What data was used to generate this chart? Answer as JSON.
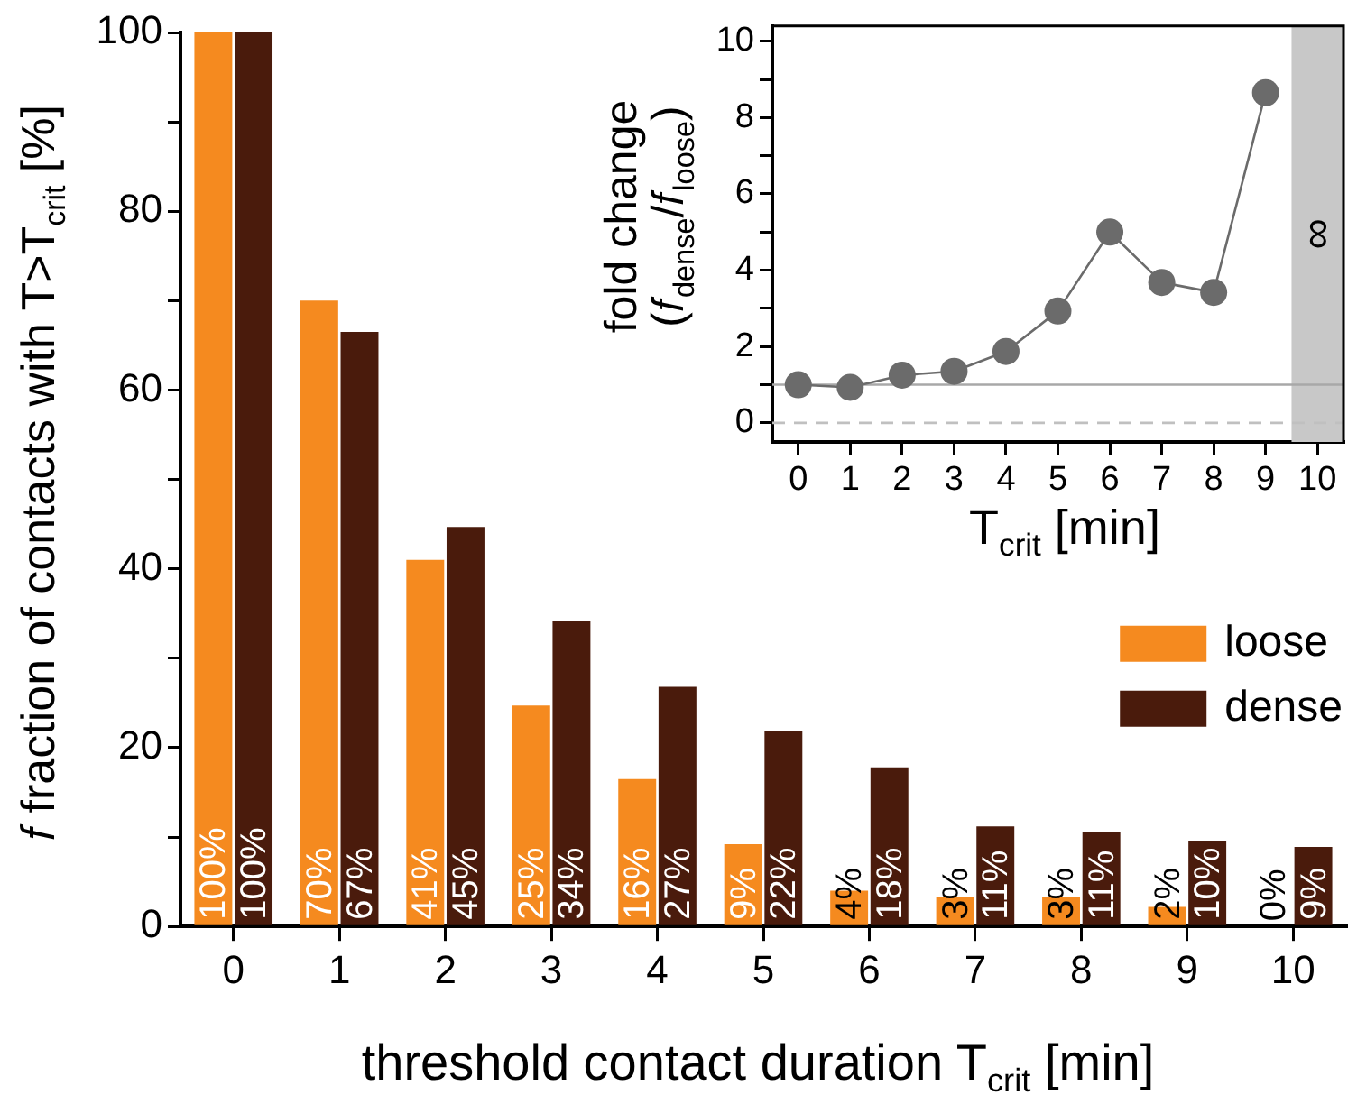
{
  "chart_data": [
    {
      "type": "bar",
      "xlabel": "threshold contact duration T$_{crit}$ [min]",
      "ylabel": "𝑓 fraction of contacts with T>T$_{crit}$ [%]",
      "categories": [
        "0",
        "1",
        "2",
        "3",
        "4",
        "5",
        "6",
        "7",
        "8",
        "9",
        "10"
      ],
      "series": [
        {
          "name": "loose",
          "color": "#f58a1f",
          "values": [
            100,
            70,
            41,
            24.7,
            16.5,
            9.2,
            4,
            3.3,
            3.3,
            2.2,
            0
          ],
          "value_labels": [
            "100%",
            "70%",
            "41%",
            "25%",
            "16%",
            "9%",
            "4%",
            "3%",
            "3%",
            "2%",
            "0%"
          ]
        },
        {
          "name": "dense",
          "color": "#4a1b0c",
          "values": [
            100,
            66.5,
            44.7,
            34.2,
            26.8,
            21.9,
            17.8,
            11.2,
            10.5,
            9.6,
            8.9
          ],
          "value_labels": [
            "100%",
            "67%",
            "45%",
            "34%",
            "27%",
            "22%",
            "18%",
            "11%",
            "11%",
            "10%",
            "9%"
          ]
        }
      ],
      "ylim": [
        0,
        100
      ],
      "yticks": [
        0,
        {
          "value": 10,
          "label": null
        },
        20,
        {
          "value": 30,
          "label": null
        },
        40,
        {
          "value": 50,
          "label": null
        },
        60,
        {
          "value": 70,
          "label": null
        },
        80,
        {
          "value": 90,
          "label": null
        },
        100
      ],
      "legend": "right"
    },
    {
      "type": "line",
      "xlabel": "T$_{crit}$ [min]",
      "ylabel": "fold change\n(𝑓$_{dense}$/𝑓$_{loose}$)",
      "x": [
        0,
        1,
        2,
        3,
        4,
        5,
        6,
        7,
        8,
        9
      ],
      "series": [
        {
          "color": "#6b6b6b",
          "values": [
            1.0,
            0.93,
            1.25,
            1.35,
            1.87,
            2.93,
            5.0,
            3.68,
            3.42,
            8.65
          ]
        }
      ],
      "xlim": [
        -0.5,
        10.5
      ],
      "xticks": [
        0,
        1,
        2,
        3,
        4,
        5,
        6,
        7,
        8,
        9,
        10
      ],
      "ylim": [
        -0.5,
        10.4
      ],
      "yticks": [
        0,
        {
          "value": 1,
          "label": null
        },
        2,
        {
          "value": 3,
          "label": null
        },
        4,
        {
          "value": 5,
          "label": null
        },
        6,
        {
          "value": 7,
          "label": null
        },
        8,
        {
          "value": 9,
          "label": null
        },
        10
      ],
      "marker": "circle",
      "ref_lines": [
        {
          "axis": "y",
          "value": 1,
          "color": "#a8a8a8",
          "line_style": "solid"
        },
        {
          "axis": "y",
          "value": 0,
          "color": "#c0c0c0",
          "line_style": "dashed"
        }
      ],
      "bands": [
        {
          "axis": "x",
          "from": 9.5,
          "to": 10.5,
          "label": "∞",
          "color": "#c8c8c8"
        }
      ]
    }
  ]
}
